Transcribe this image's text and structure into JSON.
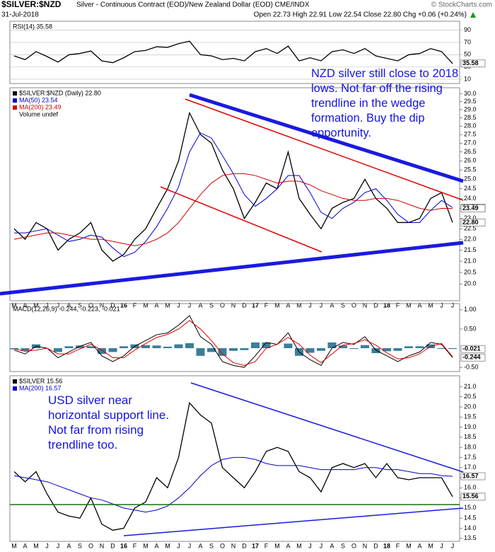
{
  "header": {
    "symbol": "$SILVER:$NZD",
    "description": "Silver - Continuous Contract (EOD)/New Zealand Dollar (EOD) CME/INDX",
    "source": "© StockCharts.com",
    "date": "31-Jul-2018",
    "quote": "Open 22.73 High 22.91 Low 22.54 Close 22.80 Chg +0.06 (+0.24%)"
  },
  "chart_data": [
    {
      "type": "line",
      "title": "RSI(14) 35.58",
      "ylim": [
        3,
        100
      ],
      "yticks": [
        10,
        30,
        50,
        70,
        90
      ],
      "grid": true,
      "end_labels": [
        "35.58"
      ],
      "series": [
        {
          "color": "#000000",
          "values": [
            48,
            42,
            55,
            47,
            38,
            50,
            52,
            56,
            40,
            37,
            45,
            55,
            57,
            63,
            62,
            68,
            72,
            50,
            48,
            42,
            44,
            40,
            55,
            60,
            52,
            64,
            40,
            45,
            40,
            55,
            58,
            52,
            60,
            48,
            44,
            40,
            50,
            52,
            60,
            55,
            35.58
          ]
        }
      ]
    },
    {
      "type": "line",
      "log_scale": true,
      "ylim": [
        19.3,
        30.2
      ],
      "yticks": [
        {
          "value": 20,
          "label": "20.0"
        },
        20.5,
        {
          "value": 21,
          "label": "21.0"
        },
        21.5,
        {
          "value": 22,
          "label": "22.0"
        },
        22.5,
        {
          "value": 23,
          "label": "23.0"
        },
        23.5,
        {
          "value": 24,
          "label": "24.0"
        },
        24.5,
        {
          "value": 25,
          "label": "25.0"
        },
        25.5,
        {
          "value": 26,
          "label": "26.0"
        },
        26.5,
        {
          "value": 27,
          "label": "27.0"
        },
        27.5,
        {
          "value": 28,
          "label": "28.0"
        },
        28.5,
        {
          "value": 29,
          "label": "29.0"
        },
        29.5,
        {
          "value": 30,
          "label": "30.0"
        }
      ],
      "categories": [
        "M",
        "A",
        "M",
        "J",
        "J",
        "A",
        "S",
        "O",
        "N",
        "D",
        "16",
        "F",
        "M",
        "A",
        "M",
        "J",
        "J",
        "A",
        "S",
        "O",
        "N",
        "D",
        "17",
        "F",
        "M",
        "A",
        "M",
        "J",
        "J",
        "A",
        "S",
        "O",
        "N",
        "D",
        "18",
        "F",
        "M",
        "A",
        "M",
        "J",
        "J"
      ],
      "series": [
        {
          "name": "$SILVER:$NZD (Daily) 22.80",
          "color": "#000000",
          "values": [
            22.5,
            22.0,
            22.8,
            22.5,
            21.5,
            22.0,
            22.3,
            22.8,
            21.5,
            21.0,
            21.3,
            22.0,
            22.5,
            23.5,
            24.5,
            26.0,
            28.8,
            27.5,
            27.0,
            25.5,
            24.5,
            23.0,
            23.8,
            24.8,
            24.5,
            26.5,
            24.0,
            23.2,
            22.5,
            23.5,
            23.8,
            24.0,
            25.0,
            24.0,
            23.5,
            22.8,
            22.8,
            23.0,
            24.0,
            24.3,
            22.8
          ]
        },
        {
          "name": "MA(50) 23.54",
          "color": "#0000cc",
          "values": [
            22.3,
            22.3,
            22.4,
            22.5,
            22.2,
            21.9,
            22.0,
            22.2,
            22.1,
            21.6,
            21.2,
            21.4,
            21.9,
            22.6,
            23.5,
            24.6,
            26.5,
            27.6,
            27.3,
            26.3,
            25.3,
            24.2,
            23.6,
            24.0,
            24.5,
            25.2,
            25.2,
            24.3,
            23.3,
            23.0,
            23.5,
            23.8,
            24.3,
            24.5,
            23.9,
            23.2,
            22.8,
            22.8,
            23.4,
            23.9,
            23.54
          ]
        },
        {
          "name": "MA(200) 23.49",
          "color": "#cc0000",
          "values": [
            22.0,
            22.1,
            22.2,
            22.3,
            22.3,
            22.2,
            22.1,
            22.0,
            22.0,
            21.9,
            21.8,
            21.7,
            21.8,
            22.0,
            22.3,
            22.8,
            23.5,
            24.2,
            24.8,
            25.2,
            25.3,
            25.3,
            25.2,
            25.0,
            24.8,
            24.9,
            24.9,
            24.7,
            24.4,
            24.2,
            24.0,
            23.9,
            23.9,
            24.0,
            24.0,
            23.9,
            23.7,
            23.5,
            23.4,
            23.5,
            23.49
          ]
        }
      ],
      "notes": [
        "Volume undef"
      ],
      "end_labels": [
        "23.54",
        "23.49",
        "22.80"
      ],
      "annotation": "NZD silver still close to 2018 lows. Not far off the rising trendline in the wedge formation. Buy the dip opportunity."
    },
    {
      "type": "line",
      "title": "MACD(12,26,9) -0.244, -0.223, -0.021",
      "ylim": [
        -0.61,
        1.09
      ],
      "yticks": [
        {
          "value": 1,
          "label": "1.00"
        },
        {
          "value": 0.5,
          "label": "0.50"
        },
        {
          "value": -0.5,
          "label": "-0.50"
        }
      ],
      "end_labels": [
        "-0.021",
        "-0.244"
      ],
      "series": [
        {
          "color": "#3b7e99",
          "style": "bar",
          "values": [
            -0.03,
            -0.07,
            0.1,
            0,
            -0.1,
            0.05,
            0.07,
            0.05,
            -0.15,
            -0.1,
            0.05,
            0.1,
            0.08,
            0.07,
            0.04,
            0.1,
            0.13,
            -0.2,
            -0.1,
            -0.2,
            -0.07,
            -0.05,
            0.15,
            0.15,
            0,
            0.12,
            -0.2,
            -0.12,
            -0.07,
            0.15,
            0.07,
            -0.02,
            0.08,
            -0.13,
            -0.08,
            -0.07,
            0.05,
            0.05,
            0.1,
            -0.02,
            -0.021
          ]
        },
        {
          "color": "#000000",
          "values": [
            -0.05,
            -0.15,
            0.05,
            0.0,
            -0.25,
            -0.1,
            0.05,
            0.15,
            -0.2,
            -0.35,
            -0.2,
            0.05,
            0.2,
            0.35,
            0.4,
            0.6,
            0.85,
            0.3,
            0.1,
            -0.35,
            -0.45,
            -0.5,
            -0.2,
            0.15,
            0.1,
            0.4,
            -0.1,
            -0.3,
            -0.45,
            0.0,
            0.15,
            0.1,
            0.3,
            -0.05,
            -0.2,
            -0.35,
            -0.2,
            -0.1,
            0.15,
            0.1,
            -0.244
          ]
        },
        {
          "color": "#dd0000",
          "values": [
            -0.02,
            -0.08,
            -0.05,
            0.0,
            -0.15,
            -0.15,
            -0.02,
            0.1,
            -0.05,
            -0.25,
            -0.25,
            -0.05,
            0.12,
            0.28,
            0.36,
            0.5,
            0.72,
            0.5,
            0.2,
            -0.15,
            -0.38,
            -0.45,
            -0.35,
            0.0,
            0.1,
            0.28,
            0.1,
            -0.18,
            -0.38,
            -0.15,
            0.08,
            0.12,
            0.22,
            0.08,
            -0.12,
            -0.28,
            -0.25,
            -0.15,
            0.05,
            0.12,
            -0.223
          ]
        }
      ]
    },
    {
      "type": "line",
      "ylim": [
        13.35,
        21.4
      ],
      "yticks": [
        13.5,
        {
          "value": 14,
          "label": "14.0"
        },
        14.5,
        {
          "value": 15,
          "label": "15.0"
        },
        15.5,
        {
          "value": 16,
          "label": "16.0"
        },
        16.5,
        {
          "value": 17,
          "label": "17.0"
        },
        17.5,
        {
          "value": 18,
          "label": "18.0"
        },
        18.5,
        {
          "value": 19,
          "label": "19.0"
        },
        19.5,
        {
          "value": 20,
          "label": "20.0"
        },
        20.5,
        {
          "value": 21,
          "label": "21.0"
        }
      ],
      "categories": [
        "M",
        "A",
        "M",
        "J",
        "J",
        "A",
        "S",
        "O",
        "N",
        "D",
        "16",
        "F",
        "M",
        "A",
        "M",
        "J",
        "J",
        "A",
        "S",
        "O",
        "N",
        "D",
        "17",
        "F",
        "M",
        "A",
        "M",
        "J",
        "J",
        "A",
        "S",
        "O",
        "N",
        "D",
        "18",
        "F",
        "M",
        "A",
        "M",
        "J",
        "J"
      ],
      "series": [
        {
          "name": "$SILVER 15.56",
          "color": "#000000",
          "values": [
            16.8,
            16.3,
            16.8,
            15.7,
            14.8,
            14.6,
            14.5,
            15.5,
            14.2,
            13.9,
            14.0,
            15.0,
            15.3,
            16.5,
            16.0,
            17.5,
            20.2,
            19.6,
            19.2,
            17.0,
            16.5,
            16.0,
            16.8,
            17.8,
            18.0,
            17.8,
            16.8,
            16.5,
            15.8,
            17.0,
            17.2,
            17.0,
            17.2,
            16.5,
            17.2,
            16.5,
            16.4,
            16.5,
            16.5,
            16.5,
            15.56
          ]
        },
        {
          "name": "MA(200) 16.57",
          "color": "#0000cc",
          "values": [
            16.6,
            16.5,
            16.4,
            16.3,
            16.1,
            15.9,
            15.7,
            15.5,
            15.4,
            15.2,
            15.0,
            14.9,
            14.8,
            14.9,
            15.1,
            15.5,
            16.0,
            16.6,
            17.1,
            17.4,
            17.5,
            17.5,
            17.4,
            17.2,
            17.1,
            17.1,
            17.1,
            17.0,
            16.9,
            16.9,
            16.9,
            16.9,
            17.0,
            17.0,
            16.9,
            16.9,
            16.8,
            16.7,
            16.7,
            16.6,
            16.57
          ]
        }
      ],
      "end_labels": [
        "16.57",
        "15.56"
      ],
      "annotation": "USD silver near horizontal support line. Not far from rising trendline too."
    }
  ]
}
